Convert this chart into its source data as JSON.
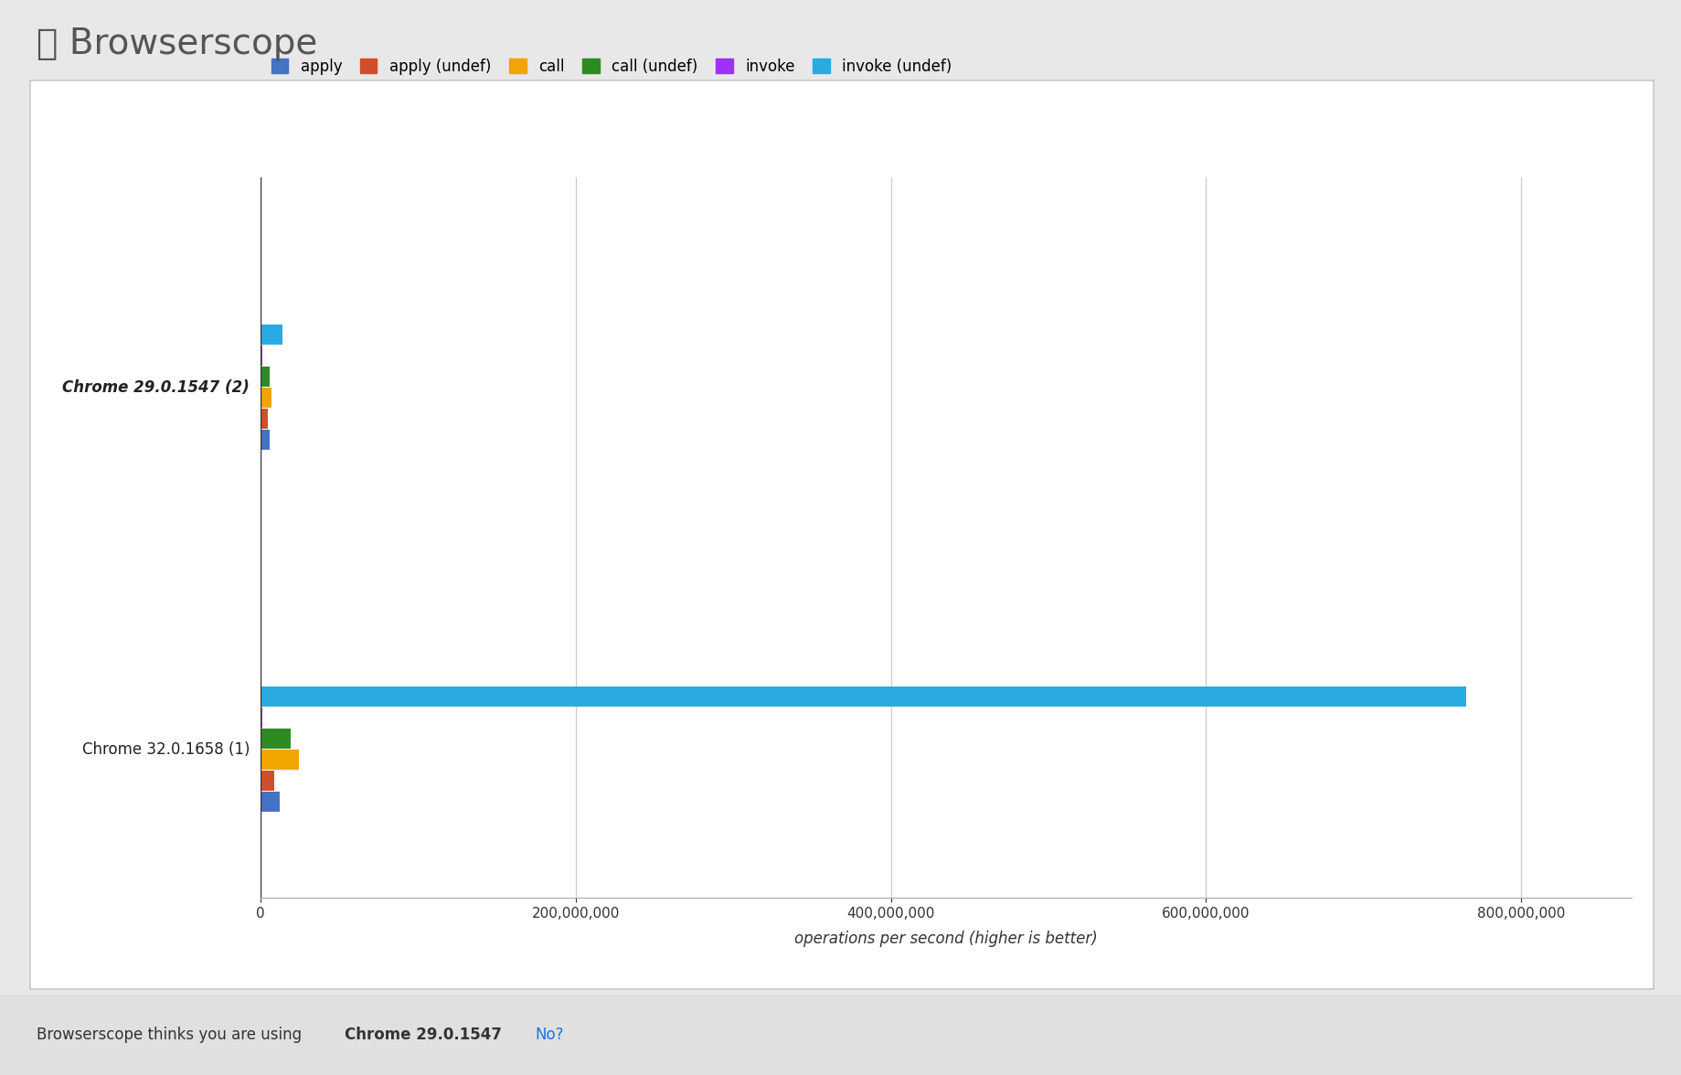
{
  "xlabel": "operations per second (higher is better)",
  "categories": [
    "Chrome 29.0.1547 (2)",
    "Chrome 32.0.1658 (1)"
  ],
  "category_bold": [
    true,
    false
  ],
  "series": [
    {
      "name": "apply",
      "color": "#4472c4",
      "values": [
        5500000,
        12000000
      ]
    },
    {
      "name": "apply (undef)",
      "color": "#d14e2a",
      "values": [
        4500000,
        8500000
      ]
    },
    {
      "name": "call",
      "color": "#f0a500",
      "values": [
        7000000,
        24000000
      ]
    },
    {
      "name": "call (undef)",
      "color": "#2e8b22",
      "values": [
        5500000,
        19000000
      ]
    },
    {
      "name": "invoke",
      "color": "#9b30ff",
      "values": [
        1200000,
        1000000
      ]
    },
    {
      "name": "invoke (undef)",
      "color": "#29abe2",
      "values": [
        14000000,
        765000000
      ]
    }
  ],
  "xlim": [
    0,
    870000000
  ],
  "xticks": [
    0,
    200000000,
    400000000,
    600000000,
    800000000
  ],
  "xtick_labels": [
    "0",
    "200,000,000",
    "400,000,000",
    "600,000,000",
    "800,000,000"
  ],
  "bg_color": "#ffffff",
  "outer_bg": "#e8e8e8",
  "chart_bg": "#ffffff",
  "grid_color": "#cccccc",
  "bar_height": 0.055,
  "bar_gap": 0.058
}
